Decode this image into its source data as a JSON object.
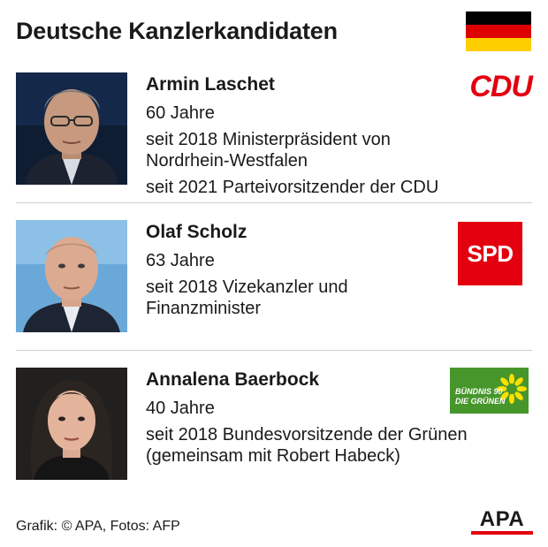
{
  "title": "Deutsche Kanzlerkandidaten",
  "flag_colors": [
    "#000000",
    "#dd0000",
    "#ffce00"
  ],
  "candidates": [
    {
      "name": "Armin Laschet",
      "lines": [
        "60 Jahre",
        "seit 2018 Ministerpräsident von",
        "Nordrhein-Westfalen",
        "seit 2021 Parteivorsitzender der CDU"
      ],
      "party_logo": "CDU",
      "logo_color": "#e3000f"
    },
    {
      "name": "Olaf Scholz",
      "lines": [
        "63 Jahre",
        "seit 2018 Vizekanzler und",
        "Finanzminister"
      ],
      "party_logo": "SPD",
      "logo_color": "#e3000f"
    },
    {
      "name": "Annalena Baerbock",
      "lines": [
        "40 Jahre",
        "seit 2018 Bundesvorsitzende der Grünen",
        "(gemeinsam mit Robert Habeck)"
      ],
      "party_logo_line1": "BÜNDNIS 90",
      "party_logo_line2": "DIE GRÜNEN",
      "logo_color": "#46962b"
    }
  ],
  "footer": "Grafik: © APA, Fotos: AFP",
  "agency_logo": "APA",
  "agency_accent": "#e3000f"
}
